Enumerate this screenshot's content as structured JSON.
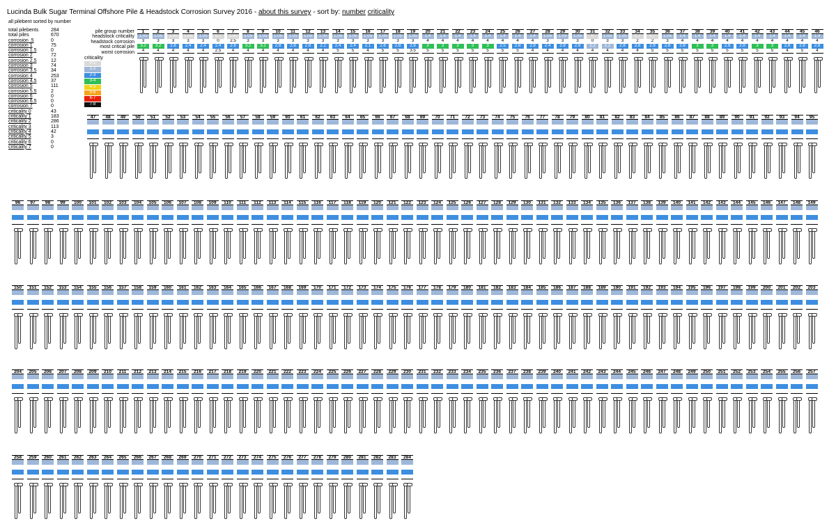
{
  "header": {
    "title": "Lucinda Bulk Sugar Terminal Offshore Pile & Headstock Corrosion Survey 2016 -",
    "about_link": "about this survey",
    "sort_prefix": "- sort by:",
    "sort_number": "number",
    "sort_criticality": "criticality"
  },
  "subtitle": "all pilebent sorted by number",
  "stats": [
    {
      "label": "total pilebents",
      "value": "284",
      "link": false
    },
    {
      "label": "total piles",
      "value": "670",
      "link": false
    },
    {
      "label": "corrosion .5",
      "value": "0",
      "link": true
    },
    {
      "label": "corrosion 1",
      "value": "75",
      "link": true
    },
    {
      "label": "corrosion 1.5",
      "value": "0",
      "link": true
    },
    {
      "label": "corrosion 2",
      "value": "72",
      "link": true
    },
    {
      "label": "corrosion 2.5",
      "value": "12",
      "link": true
    },
    {
      "label": "corrosion 3",
      "value": "74",
      "link": true
    },
    {
      "label": "corrosion 3.5",
      "value": "34",
      "link": true
    },
    {
      "label": "corrosion 4",
      "value": "253",
      "link": true
    },
    {
      "label": "corrosion 4.5",
      "value": "37",
      "link": true
    },
    {
      "label": "corrosion 5",
      "value": "111",
      "link": true
    },
    {
      "label": "corrosion 5.5",
      "value": "2",
      "link": true
    },
    {
      "label": "corrosion 6",
      "value": "0",
      "link": true
    },
    {
      "label": "corrosion 6.5",
      "value": "0",
      "link": true
    },
    {
      "label": "corrosion 7",
      "value": "0",
      "link": true
    },
    {
      "label": "criticality 0",
      "value": "43",
      "link": true
    },
    {
      "label": "criticality 1",
      "value": "183",
      "link": true
    },
    {
      "label": "criticality 2",
      "value": "286",
      "link": true
    },
    {
      "label": "criticality 3",
      "value": "113",
      "link": true
    },
    {
      "label": "criticality 4",
      "value": "42",
      "link": true
    },
    {
      "label": "criticality 5",
      "value": "3",
      "link": true
    },
    {
      "label": "criticality 6",
      "value": "0",
      "link": true
    },
    {
      "label": "criticality 7",
      "value": "0",
      "link": true
    }
  ],
  "row_labels": [
    "pile group number",
    "headstock criticality",
    "headstock corrosion",
    "most critical pile",
    "worst corrosion"
  ],
  "legend": {
    "title": "criticality",
    "items": [
      {
        "label": "0-1",
        "color": "#d9d9d9",
        "text": "#ffffff"
      },
      {
        "label": "1-2",
        "color": "#9fb8d9",
        "text": "#ffffff"
      },
      {
        "label": "2-3",
        "color": "#3d8ee0",
        "text": "#ffffff"
      },
      {
        "label": "3-4",
        "color": "#2fbf55",
        "text": "#ffffff"
      },
      {
        "label": "4-5",
        "color": "#f2d21b",
        "text": "#ffffff"
      },
      {
        "label": "5-6",
        "color": "#f5a41c",
        "text": "#ffffff"
      },
      {
        "label": "6-7",
        "color": "#e8200c",
        "text": "#ffffff"
      },
      {
        "label": "7-8",
        "color": "#111111",
        "text": "#ffffff"
      }
    ]
  },
  "palette": {
    "gray": "#d9d9d9",
    "lightblue": "#9fb8d9",
    "blue": "#3d8ee0",
    "green": "#2fbf55",
    "yellow": "#f2d21b",
    "orange": "#f5a41c"
  },
  "pilebents": [
    {
      "n": "1",
      "hc": "1.05",
      "hco": "3",
      "mc": "3.2",
      "wc": "4",
      "c": "lightblue"
    },
    {
      "n": "2",
      "hc": "1.05",
      "hco": "3",
      "mc": "3.2",
      "wc": "4",
      "c": "lightblue"
    },
    {
      "n": "3",
      "hc": "1.05",
      "hco": "3",
      "mc": "2.8",
      "wc": "4",
      "c": "gray"
    },
    {
      "n": "4",
      "hc": "1.05",
      "hco": "3",
      "mc": "2.4",
      "wc": "4",
      "c": "gray"
    },
    {
      "n": "5",
      "hc": "1.05",
      "hco": "3",
      "mc": "2.4",
      "wc": "4",
      "c": "lightblue"
    },
    {
      "n": "6",
      "hc": "0.7",
      "hco": "0",
      "mc": "2.4",
      "wc": "2.5",
      "c": "gray"
    },
    {
      "n": "7",
      "hc": "1.05",
      "hco": "2.5",
      "mc": "2.8",
      "wc": "4",
      "c": "gray"
    },
    {
      "n": "8",
      "hc": "1.05",
      "hco": "3",
      "mc": "3.2",
      "wc": "4",
      "c": "lightblue"
    },
    {
      "n": "9",
      "hc": "1.05",
      "hco": "3",
      "mc": "3.2",
      "wc": "4",
      "c": "lightblue"
    },
    {
      "n": "10",
      "hc": "1.05",
      "hco": "3",
      "mc": "2.8",
      "wc": "4",
      "c": "lightblue"
    },
    {
      "n": "11",
      "hc": "1.05",
      "hco": "3",
      "mc": "2.8",
      "wc": "4",
      "c": "lightblue"
    },
    {
      "n": "12",
      "hc": "1.05",
      "hco": "3",
      "mc": "2.8",
      "wc": "4",
      "c": "lightblue"
    },
    {
      "n": "13",
      "hc": "1.05",
      "hco": "3",
      "mc": "2.1",
      "wc": "4",
      "c": "lightblue"
    },
    {
      "n": "14",
      "hc": "1.05",
      "hco": "3",
      "mc": "2.4",
      "wc": "5",
      "c": "lightblue"
    },
    {
      "n": "15",
      "hc": "1.05",
      "hco": "3",
      "mc": "2.4",
      "wc": "5",
      "c": "lightblue"
    },
    {
      "n": "16",
      "hc": "1.05",
      "hco": "3",
      "mc": "2.1",
      "wc": "4",
      "c": "lightblue"
    },
    {
      "n": "17",
      "hc": "1.05",
      "hco": "3",
      "mc": "2.8",
      "wc": "5",
      "c": "lightblue"
    },
    {
      "n": "18",
      "hc": "1.05",
      "hco": "3",
      "mc": "2.8",
      "wc": "5",
      "c": "lightblue"
    },
    {
      "n": "19",
      "hc": "1.05",
      "hco": "3",
      "mc": "2.8",
      "wc": "3.5",
      "c": "lightblue"
    },
    {
      "n": "20",
      "hc": "1.4",
      "hco": "4",
      "mc": "3",
      "wc": "5",
      "c": "lightblue"
    },
    {
      "n": "21",
      "hc": "1.4",
      "hco": "4",
      "mc": "3",
      "wc": "5",
      "c": "lightblue"
    },
    {
      "n": "22",
      "hc": "1.4",
      "hco": "4",
      "mc": "3",
      "wc": "5",
      "c": "lightblue"
    },
    {
      "n": "23",
      "hc": "1.4",
      "hco": "4",
      "mc": "3",
      "wc": "5",
      "c": "lightblue"
    },
    {
      "n": "24",
      "hc": "1.4",
      "hco": "4",
      "mc": "3",
      "wc": "5",
      "c": "lightblue"
    },
    {
      "n": "25",
      "hc": "1.4",
      "hco": "4",
      "mc": "2.5",
      "wc": "5",
      "c": "lightblue"
    },
    {
      "n": "26",
      "hc": "1.4",
      "hco": "4",
      "mc": "2.8",
      "wc": "5",
      "c": "lightblue"
    },
    {
      "n": "27",
      "hc": "1.4",
      "hco": "4",
      "mc": "2.8",
      "wc": "4",
      "c": "lightblue"
    },
    {
      "n": "28",
      "hc": "1.05",
      "hco": "3",
      "mc": "2.4",
      "wc": "4",
      "c": "lightblue"
    },
    {
      "n": "29",
      "hc": "1.05",
      "hco": "3",
      "mc": "2.8",
      "wc": "4",
      "c": "lightblue"
    },
    {
      "n": "30",
      "hc": "1.05",
      "hco": "3",
      "mc": "2.8",
      "wc": "4",
      "c": "lightblue"
    },
    {
      "n": "31",
      "hc": "0",
      "hco": "0",
      "mc": "1.2",
      "wc": "4",
      "c": "gray"
    },
    {
      "n": "32",
      "hc": "1.05",
      "hco": "3",
      "mc": "1.2",
      "wc": "4",
      "c": "lightblue"
    },
    {
      "n": "33",
      "hc": "1.05",
      "hco": "3",
      "mc": "2.8",
      "wc": "4",
      "c": "lightblue"
    },
    {
      "n": "34",
      "hc": "0.7",
      "hco": "2",
      "mc": "2.8",
      "wc": "4",
      "c": "gray"
    },
    {
      "n": "35",
      "hc": "0.7",
      "hco": "2",
      "mc": "2.8",
      "wc": "5",
      "c": "gray"
    },
    {
      "n": "36",
      "hc": "1.05",
      "hco": "3",
      "mc": "2.8",
      "wc": "5",
      "c": "lightblue"
    },
    {
      "n": "37",
      "hc": "1.4",
      "hco": "4",
      "mc": "2.8",
      "wc": "5",
      "c": "lightblue"
    },
    {
      "n": "38",
      "hc": "1.4",
      "hco": "4",
      "mc": "3",
      "wc": "5",
      "c": "lightblue"
    },
    {
      "n": "39",
      "hc": "1.4",
      "hco": "4",
      "mc": "3",
      "wc": "5",
      "c": "lightblue"
    },
    {
      "n": "40",
      "hc": "1.4",
      "hco": "4",
      "mc": "2.8",
      "wc": "5",
      "c": "lightblue"
    },
    {
      "n": "41",
      "hc": "1.4",
      "hco": "4",
      "mc": "2.8",
      "wc": "5",
      "c": "lightblue"
    },
    {
      "n": "42",
      "hc": "1.4",
      "hco": "4",
      "mc": "3",
      "wc": "5",
      "c": "lightblue"
    },
    {
      "n": "43",
      "hc": "1.4",
      "hco": "4",
      "mc": "3",
      "wc": "5",
      "c": "lightblue"
    },
    {
      "n": "44",
      "hc": "1.4",
      "hco": "4",
      "mc": "2.8",
      "wc": "4",
      "c": "lightblue"
    },
    {
      "n": "45",
      "hc": "1.4",
      "hco": "4",
      "mc": "2.8",
      "wc": "5",
      "c": "lightblue"
    },
    {
      "n": "46",
      "hc": "1.4",
      "hco": "4",
      "mc": "2.8",
      "wc": "4",
      "c": "lightblue"
    }
  ],
  "row_ranges": [
    {
      "start": 1,
      "end": 46
    },
    {
      "start": 47,
      "end": 95
    },
    {
      "start": 96,
      "end": 149
    },
    {
      "start": 150,
      "end": 203
    },
    {
      "start": 204,
      "end": 257
    },
    {
      "start": 258,
      "end": 284
    }
  ]
}
